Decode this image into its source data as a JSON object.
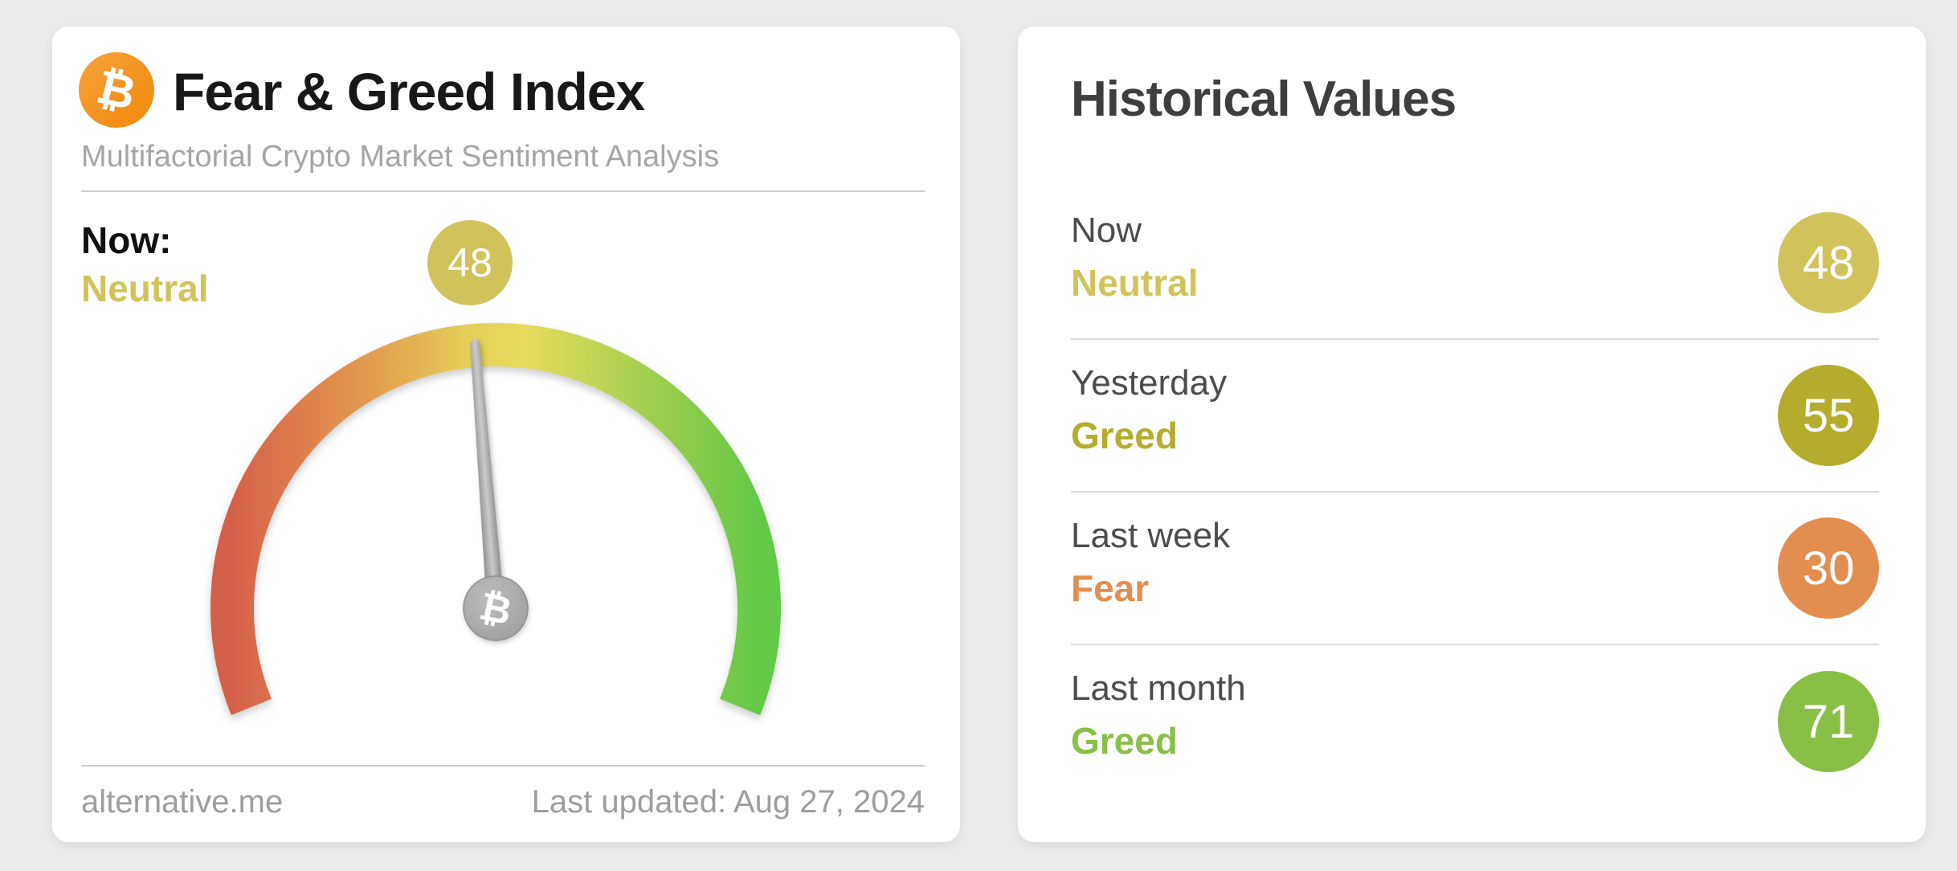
{
  "page": {
    "background": "#ebebeb"
  },
  "fear_greed_card": {
    "logo_icon": "bitcoin-icon",
    "bitcoin_symbol": "₿",
    "title": "Fear & Greed Index",
    "subtitle": "Multifactorial Crypto Market Sentiment Analysis",
    "now_label": "Now:",
    "now_value": "Neutral",
    "now_color": "#d1c35c",
    "badge_value": "48",
    "footer": {
      "source": "alternative.me",
      "last_updated": "Last updated: Aug 27, 2024"
    }
  },
  "historical_card": {
    "title": "Historical Values",
    "rows": [
      {
        "label": "Now",
        "classification": "Neutral",
        "value": "48",
        "color": "#d1c35c"
      },
      {
        "label": "Yesterday",
        "classification": "Greed",
        "value": "55",
        "color": "#b3ac2d"
      },
      {
        "label": "Last week",
        "classification": "Fear",
        "value": "30",
        "color": "#e28e51"
      },
      {
        "label": "Last month",
        "classification": "Greed",
        "value": "71",
        "color": "#8abf47"
      }
    ]
  },
  "chart_data": {
    "type": "gauge",
    "title": "Fear & Greed Index",
    "value": 48,
    "classification": "Neutral",
    "range": [
      0,
      100
    ],
    "arc_span_degrees": 224,
    "arc_gradient": [
      "#d5604a",
      "#dd7b4c",
      "#e2a050",
      "#e5cf58",
      "#e6db5b",
      "#bed455",
      "#90cc4c",
      "#63c947"
    ],
    "needle_color": "#a2a2a2",
    "historical": [
      {
        "period": "Now",
        "classification": "Neutral",
        "value": 48
      },
      {
        "period": "Yesterday",
        "classification": "Greed",
        "value": 55
      },
      {
        "period": "Last week",
        "classification": "Fear",
        "value": 30
      },
      {
        "period": "Last month",
        "classification": "Greed",
        "value": 71
      }
    ]
  }
}
